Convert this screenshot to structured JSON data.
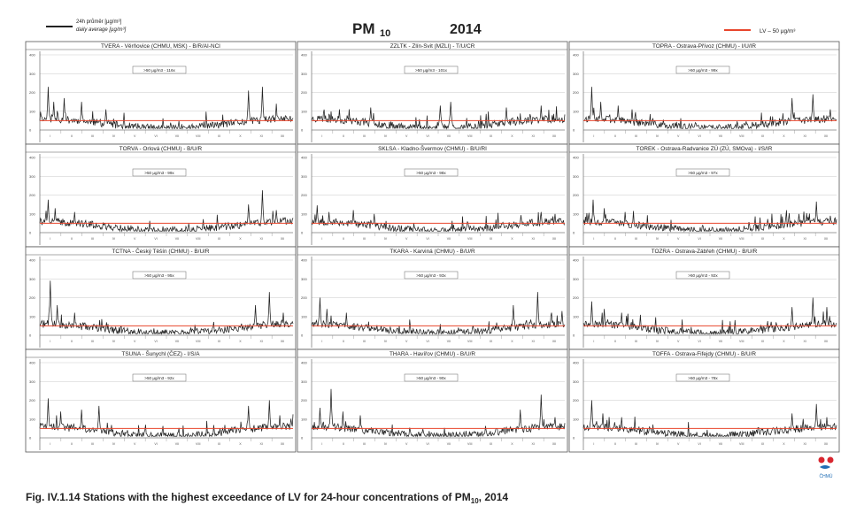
{
  "header": {
    "legend_line_label_1": "24h průměr [µg/m³]",
    "legend_line_label_2": "daily average [µg/m³]",
    "main_title_pm": "PM",
    "main_title_sub": "10",
    "main_title_year": "2014",
    "lv_label": "LV – 50 µg/m³"
  },
  "logo_text": "ČHMÚ",
  "caption": {
    "text": "Fig. IV.1.14  Stations with the highest exceedance of LV for 24-hour concentrations of PM",
    "sub": "10",
    "tail": ", 2014"
  },
  "colors": {
    "series": "#222222",
    "limit": "#e8452c",
    "frame": "#555555",
    "grid": "#bbbbbb",
    "logo_red": "#d8262f",
    "logo_blue": "#1f6db5"
  },
  "chart_data": [
    {
      "type": "line",
      "title": "TVERA - Věrňovice (CHMU, MSK) - B/R/AI-NCI",
      "exceed": ">50 µg/m3 - 116x",
      "seed": 11,
      "peaks": [
        [
          12,
          230
        ],
        [
          20,
          150
        ],
        [
          35,
          170
        ],
        [
          60,
          150
        ],
        [
          95,
          110
        ],
        [
          300,
          210
        ],
        [
          320,
          230
        ],
        [
          340,
          140
        ]
      ],
      "yticks": [
        "400",
        "300",
        "200",
        "100",
        "0"
      ],
      "ylim": [
        0,
        400
      ],
      "limit": 50
    },
    {
      "type": "line",
      "title": "ZZLTK - Zlín-Svit (MZLI) - T/U/CR",
      "exceed": ">50 µg/m3 - 101x",
      "seed": 23,
      "peaks": [
        [
          40,
          110
        ],
        [
          85,
          120
        ],
        [
          185,
          130
        ],
        [
          200,
          150
        ],
        [
          280,
          120
        ],
        [
          330,
          130
        ]
      ],
      "yticks": [
        "400",
        "300",
        "200",
        "100",
        "0"
      ],
      "ylim": [
        0,
        400
      ],
      "limit": 50
    },
    {
      "type": "line",
      "title": "TOPRA - Ostrava-Přívoz (CHMU) - I/U/IR",
      "exceed": ">50 µg/m3 - 99x",
      "seed": 37,
      "peaks": [
        [
          12,
          230
        ],
        [
          25,
          150
        ],
        [
          50,
          130
        ],
        [
          70,
          110
        ],
        [
          300,
          170
        ],
        [
          330,
          190
        ],
        [
          355,
          110
        ]
      ],
      "yticks": [
        "400",
        "300",
        "200",
        "100",
        "0"
      ],
      "ylim": [
        0,
        400
      ],
      "limit": 50
    },
    {
      "type": "line",
      "title": "TORVA - Orlová (CHMU) - B/U/R",
      "exceed": ">50 µg/m3 - 99x",
      "seed": 41,
      "peaks": [
        [
          12,
          175
        ],
        [
          22,
          130
        ],
        [
          50,
          110
        ],
        [
          300,
          150
        ],
        [
          320,
          225
        ],
        [
          340,
          120
        ]
      ],
      "yticks": [
        "400",
        "300",
        "200",
        "100",
        "0"
      ],
      "ylim": [
        0,
        400
      ],
      "limit": 50
    },
    {
      "type": "line",
      "title": "SKLSA - Kladno-Švermov (CHMU) - B/U/RI",
      "exceed": ">50 µg/m3 - 98x",
      "seed": 53,
      "peaks": [
        [
          8,
          145
        ],
        [
          25,
          110
        ],
        [
          60,
          120
        ],
        [
          90,
          100
        ],
        [
          330,
          110
        ],
        [
          350,
          100
        ]
      ],
      "yticks": [
        "400",
        "300",
        "200",
        "100",
        "0"
      ],
      "ylim": [
        0,
        400
      ],
      "limit": 50
    },
    {
      "type": "line",
      "title": "TOREK - Ostrava-Radvanice ZÚ (ZÚ, SMOva) - I/S/IR",
      "exceed": ">50 µg/m3 - 97x",
      "seed": 67,
      "peaks": [
        [
          14,
          175
        ],
        [
          30,
          130
        ],
        [
          60,
          110
        ],
        [
          310,
          100
        ],
        [
          335,
          165
        ],
        [
          355,
          90
        ]
      ],
      "yticks": [
        "400",
        "300",
        "200",
        "100",
        "0"
      ],
      "ylim": [
        0,
        400
      ],
      "limit": 50
    },
    {
      "type": "line",
      "title": "TCTNA - Český Těšín (CHMU) - B/U/R",
      "exceed": ">50 µg/m3 - 95x",
      "seed": 71,
      "peaks": [
        [
          15,
          290
        ],
        [
          25,
          160
        ],
        [
          50,
          120
        ],
        [
          310,
          160
        ],
        [
          330,
          230
        ],
        [
          350,
          120
        ]
      ],
      "yticks": [
        "400",
        "300",
        "200",
        "100",
        "0"
      ],
      "ylim": [
        0,
        400
      ],
      "limit": 50
    },
    {
      "type": "line",
      "title": "TKARA - Karviná (CHMU) - B/U/R",
      "exceed": ">50 µg/m3 - 93x",
      "seed": 83,
      "peaks": [
        [
          12,
          200
        ],
        [
          22,
          140
        ],
        [
          50,
          120
        ],
        [
          290,
          160
        ],
        [
          325,
          230
        ],
        [
          345,
          120
        ]
      ],
      "yticks": [
        "400",
        "300",
        "200",
        "100",
        "0"
      ],
      "ylim": [
        0,
        400
      ],
      "limit": 50
    },
    {
      "type": "line",
      "title": "TOZRA - Ostrava-Zábřeh (CHMU) - B/U/R",
      "exceed": ">50 µg/m3 - 92x",
      "seed": 97,
      "peaks": [
        [
          12,
          180
        ],
        [
          30,
          140
        ],
        [
          55,
          120
        ],
        [
          300,
          150
        ],
        [
          330,
          200
        ],
        [
          350,
          150
        ]
      ],
      "yticks": [
        "400",
        "300",
        "200",
        "100",
        "0"
      ],
      "ylim": [
        0,
        400
      ],
      "limit": 50
    },
    {
      "type": "line",
      "title": "TSUNA - Šunychl (ČEZ) - I/S/A",
      "exceed": ">50 µg/m3 - 92x",
      "seed": 101,
      "peaks": [
        [
          12,
          210
        ],
        [
          30,
          140
        ],
        [
          60,
          150
        ],
        [
          85,
          170
        ],
        [
          300,
          170
        ],
        [
          330,
          200
        ],
        [
          345,
          120
        ]
      ],
      "yticks": [
        "400",
        "300",
        "200",
        "100",
        "0"
      ],
      "ylim": [
        0,
        400
      ],
      "limit": 50
    },
    {
      "type": "line",
      "title": "THARA - Havířov (CHMU) - B/U/R",
      "exceed": ">50 µg/m3 - 90x",
      "seed": 113,
      "peaks": [
        [
          12,
          160
        ],
        [
          28,
          260
        ],
        [
          45,
          140
        ],
        [
          70,
          120
        ],
        [
          300,
          150
        ],
        [
          330,
          230
        ],
        [
          350,
          110
        ]
      ],
      "yticks": [
        "400",
        "300",
        "200",
        "100",
        "0"
      ],
      "ylim": [
        0,
        400
      ],
      "limit": 50
    },
    {
      "type": "line",
      "title": "TOFFA - Ostrava-Fifejdy (CHMU) - B/U/R",
      "exceed": ">50 µg/m3 - 78x",
      "seed": 127,
      "peaks": [
        [
          12,
          200
        ],
        [
          28,
          130
        ],
        [
          55,
          110
        ],
        [
          300,
          130
        ],
        [
          335,
          180
        ],
        [
          350,
          110
        ]
      ],
      "yticks": [
        "400",
        "300",
        "200",
        "100",
        "0"
      ],
      "ylim": [
        0,
        400
      ],
      "limit": 50
    }
  ],
  "months": [
    "I",
    "II",
    "III",
    "IV",
    "V",
    "VI",
    "VII",
    "VIII",
    "IX",
    "X",
    "XI",
    "XII"
  ]
}
